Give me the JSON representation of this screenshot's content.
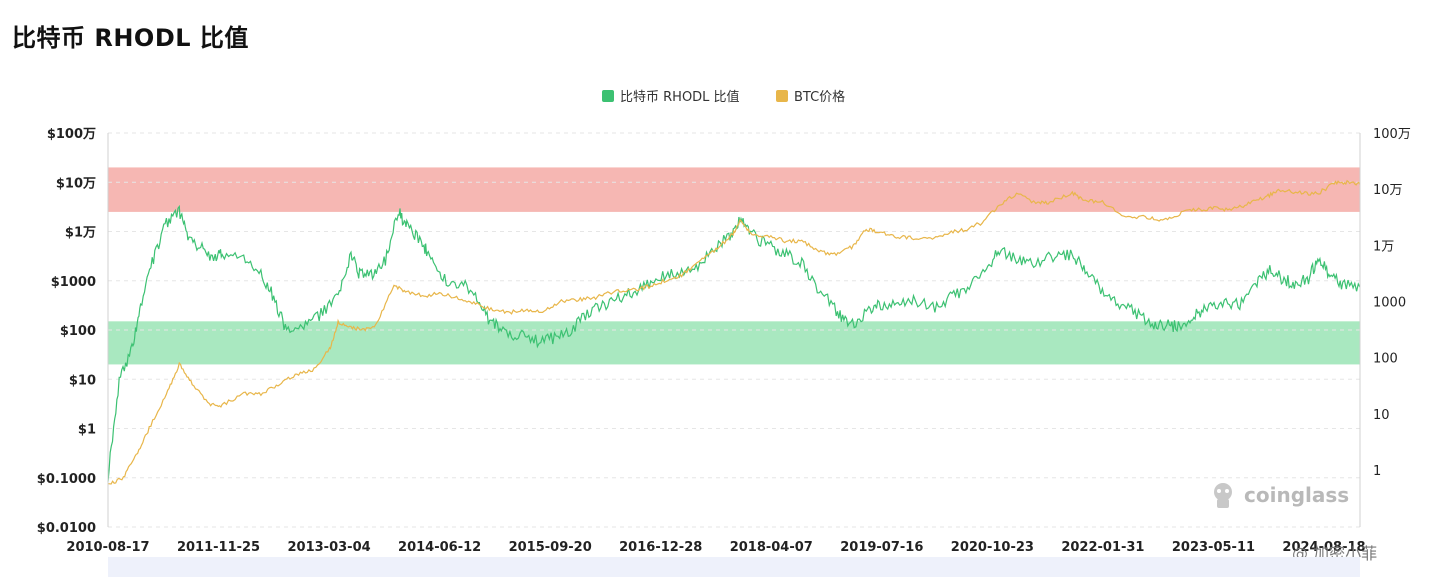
{
  "title": "比特币 RHODL 比值",
  "watermark": "coinglass",
  "credit": "@ 加密小菲",
  "colors": {
    "rhodl": "#3cc172",
    "price": "#e8b64a",
    "red_band": "#f6b7b3",
    "green_band": "#a9e8c0",
    "grid": "#e6e6e6"
  },
  "chart_data": {
    "type": "line",
    "title": "比特币 RHODL 比值",
    "legend": [
      "比特币 RHODL 比值",
      "BTC价格"
    ],
    "legend_position": "top-center",
    "x_labels": [
      "2010-08-17",
      "2011-11-25",
      "2013-03-04",
      "2014-06-12",
      "2015-09-20",
      "2016-12-28",
      "2018-04-07",
      "2019-07-16",
      "2020-10-23",
      "2022-01-31",
      "2023-05-11",
      "2024-08-18"
    ],
    "x_range": [
      2010.62,
      2025.2
    ],
    "y_left": {
      "scale": "log",
      "ticks": [
        0.01,
        0.1,
        1,
        10,
        100,
        1000,
        10000,
        100000,
        1000000
      ],
      "tick_labels": [
        "$0.0100",
        "$0.1000",
        "$1",
        "$10",
        "$100",
        "$1000",
        "$1万",
        "$10万",
        "$100万"
      ]
    },
    "y_right": {
      "scale": "log",
      "ticks": [
        1,
        10,
        100,
        1000,
        10000,
        100000,
        1000000
      ],
      "tick_labels": [
        "1",
        "10",
        "100",
        "1000",
        "1万",
        "10万",
        "100万"
      ]
    },
    "bands": [
      {
        "name": "red",
        "axis": "left",
        "from": 25000,
        "to": 200000
      },
      {
        "name": "green",
        "axis": "left",
        "from": 20,
        "to": 150
      }
    ],
    "series": [
      {
        "name": "比特币 RHODL 比值",
        "axis": "right",
        "points": [
          [
            2010.62,
            0.8
          ],
          [
            2010.75,
            40
          ],
          [
            2010.9,
            150
          ],
          [
            2011.0,
            800
          ],
          [
            2011.15,
            6000
          ],
          [
            2011.3,
            25000
          ],
          [
            2011.45,
            40000
          ],
          [
            2011.55,
            15000
          ],
          [
            2011.7,
            9000
          ],
          [
            2011.85,
            6000
          ],
          [
            2011.95,
            7000
          ],
          [
            2012.2,
            6000
          ],
          [
            2012.4,
            3000
          ],
          [
            2012.55,
            1200
          ],
          [
            2012.7,
            280
          ],
          [
            2012.9,
            350
          ],
          [
            2013.1,
            600
          ],
          [
            2013.3,
            1200
          ],
          [
            2013.45,
            7000
          ],
          [
            2013.55,
            3000
          ],
          [
            2013.7,
            3200
          ],
          [
            2013.85,
            5500
          ],
          [
            2014.0,
            40000
          ],
          [
            2014.1,
            22000
          ],
          [
            2014.25,
            12000
          ],
          [
            2014.35,
            7500
          ],
          [
            2014.5,
            2500
          ],
          [
            2014.7,
            2200
          ],
          [
            2014.9,
            1400
          ],
          [
            2015.05,
            500
          ],
          [
            2015.2,
            300
          ],
          [
            2015.4,
            250
          ],
          [
            2015.6,
            200
          ],
          [
            2015.8,
            220
          ],
          [
            2016.0,
            300
          ],
          [
            2016.2,
            600
          ],
          [
            2016.4,
            900
          ],
          [
            2016.6,
            1200
          ],
          [
            2016.8,
            1600
          ],
          [
            2017.0,
            2500
          ],
          [
            2017.2,
            3000
          ],
          [
            2017.45,
            4000
          ],
          [
            2017.65,
            8000
          ],
          [
            2017.85,
            14000
          ],
          [
            2017.98,
            30000
          ],
          [
            2018.1,
            16000
          ],
          [
            2018.3,
            10000
          ],
          [
            2018.5,
            7000
          ],
          [
            2018.7,
            5000
          ],
          [
            2018.9,
            1600
          ],
          [
            2019.1,
            700
          ],
          [
            2019.25,
            350
          ],
          [
            2019.45,
            600
          ],
          [
            2019.6,
            900
          ],
          [
            2019.8,
            800
          ],
          [
            2020.0,
            1000
          ],
          [
            2020.25,
            800
          ],
          [
            2020.45,
            1200
          ],
          [
            2020.65,
            2000
          ],
          [
            2020.85,
            4000
          ],
          [
            2021.0,
            8000
          ],
          [
            2021.2,
            6000
          ],
          [
            2021.4,
            5000
          ],
          [
            2021.65,
            6500
          ],
          [
            2021.85,
            7000
          ],
          [
            2022.0,
            3500
          ],
          [
            2022.2,
            1500
          ],
          [
            2022.4,
            900
          ],
          [
            2022.6,
            600
          ],
          [
            2022.8,
            400
          ],
          [
            2022.95,
            380
          ],
          [
            2023.1,
            350
          ],
          [
            2023.25,
            500
          ],
          [
            2023.4,
            800
          ],
          [
            2023.6,
            900
          ],
          [
            2023.8,
            900
          ],
          [
            2024.0,
            2200
          ],
          [
            2024.15,
            3500
          ],
          [
            2024.3,
            2500
          ],
          [
            2024.45,
            2000
          ],
          [
            2024.6,
            2600
          ],
          [
            2024.72,
            6000
          ],
          [
            2024.85,
            3000
          ],
          [
            2025.0,
            2000
          ],
          [
            2025.2,
            1800
          ]
        ]
      },
      {
        "name": "BTC价格",
        "axis": "left",
        "points": [
          [
            2010.62,
            0.07
          ],
          [
            2010.8,
            0.1
          ],
          [
            2010.95,
            0.3
          ],
          [
            2011.1,
            1
          ],
          [
            2011.3,
            5
          ],
          [
            2011.45,
            20
          ],
          [
            2011.6,
            8
          ],
          [
            2011.8,
            3
          ],
          [
            2011.95,
            3
          ],
          [
            2012.2,
            5
          ],
          [
            2012.4,
            5
          ],
          [
            2012.6,
            8
          ],
          [
            2012.8,
            12
          ],
          [
            2013.0,
            15
          ],
          [
            2013.2,
            40
          ],
          [
            2013.3,
            140
          ],
          [
            2013.45,
            110
          ],
          [
            2013.6,
            100
          ],
          [
            2013.75,
            130
          ],
          [
            2013.95,
            800
          ],
          [
            2014.1,
            600
          ],
          [
            2014.3,
            500
          ],
          [
            2014.5,
            550
          ],
          [
            2014.7,
            450
          ],
          [
            2014.9,
            350
          ],
          [
            2015.1,
            250
          ],
          [
            2015.3,
            230
          ],
          [
            2015.5,
            250
          ],
          [
            2015.7,
            240
          ],
          [
            2015.9,
            380
          ],
          [
            2016.1,
            420
          ],
          [
            2016.3,
            450
          ],
          [
            2016.5,
            600
          ],
          [
            2016.7,
            650
          ],
          [
            2016.9,
            750
          ],
          [
            2017.1,
            1000
          ],
          [
            2017.3,
            1300
          ],
          [
            2017.5,
            2500
          ],
          [
            2017.7,
            4300
          ],
          [
            2017.9,
            9000
          ],
          [
            2017.98,
            17000
          ],
          [
            2018.1,
            9000
          ],
          [
            2018.3,
            8000
          ],
          [
            2018.5,
            6500
          ],
          [
            2018.7,
            6500
          ],
          [
            2018.9,
            3800
          ],
          [
            2019.1,
            3600
          ],
          [
            2019.3,
            5000
          ],
          [
            2019.45,
            11000
          ],
          [
            2019.6,
            10000
          ],
          [
            2019.8,
            8000
          ],
          [
            2020.0,
            7500
          ],
          [
            2020.2,
            6800
          ],
          [
            2020.4,
            9500
          ],
          [
            2020.6,
            11000
          ],
          [
            2020.8,
            15000
          ],
          [
            2021.0,
            35000
          ],
          [
            2021.2,
            58000
          ],
          [
            2021.45,
            37000
          ],
          [
            2021.6,
            40000
          ],
          [
            2021.85,
            60000
          ],
          [
            2022.0,
            42000
          ],
          [
            2022.2,
            40000
          ],
          [
            2022.45,
            20000
          ],
          [
            2022.7,
            19500
          ],
          [
            2022.9,
            16800
          ],
          [
            2023.1,
            23000
          ],
          [
            2023.3,
            28000
          ],
          [
            2023.5,
            30000
          ],
          [
            2023.7,
            27000
          ],
          [
            2023.9,
            37000
          ],
          [
            2024.1,
            50000
          ],
          [
            2024.25,
            68000
          ],
          [
            2024.5,
            62000
          ],
          [
            2024.7,
            58000
          ],
          [
            2024.9,
            95000
          ],
          [
            2025.05,
            100000
          ],
          [
            2025.2,
            90000
          ]
        ]
      }
    ]
  }
}
